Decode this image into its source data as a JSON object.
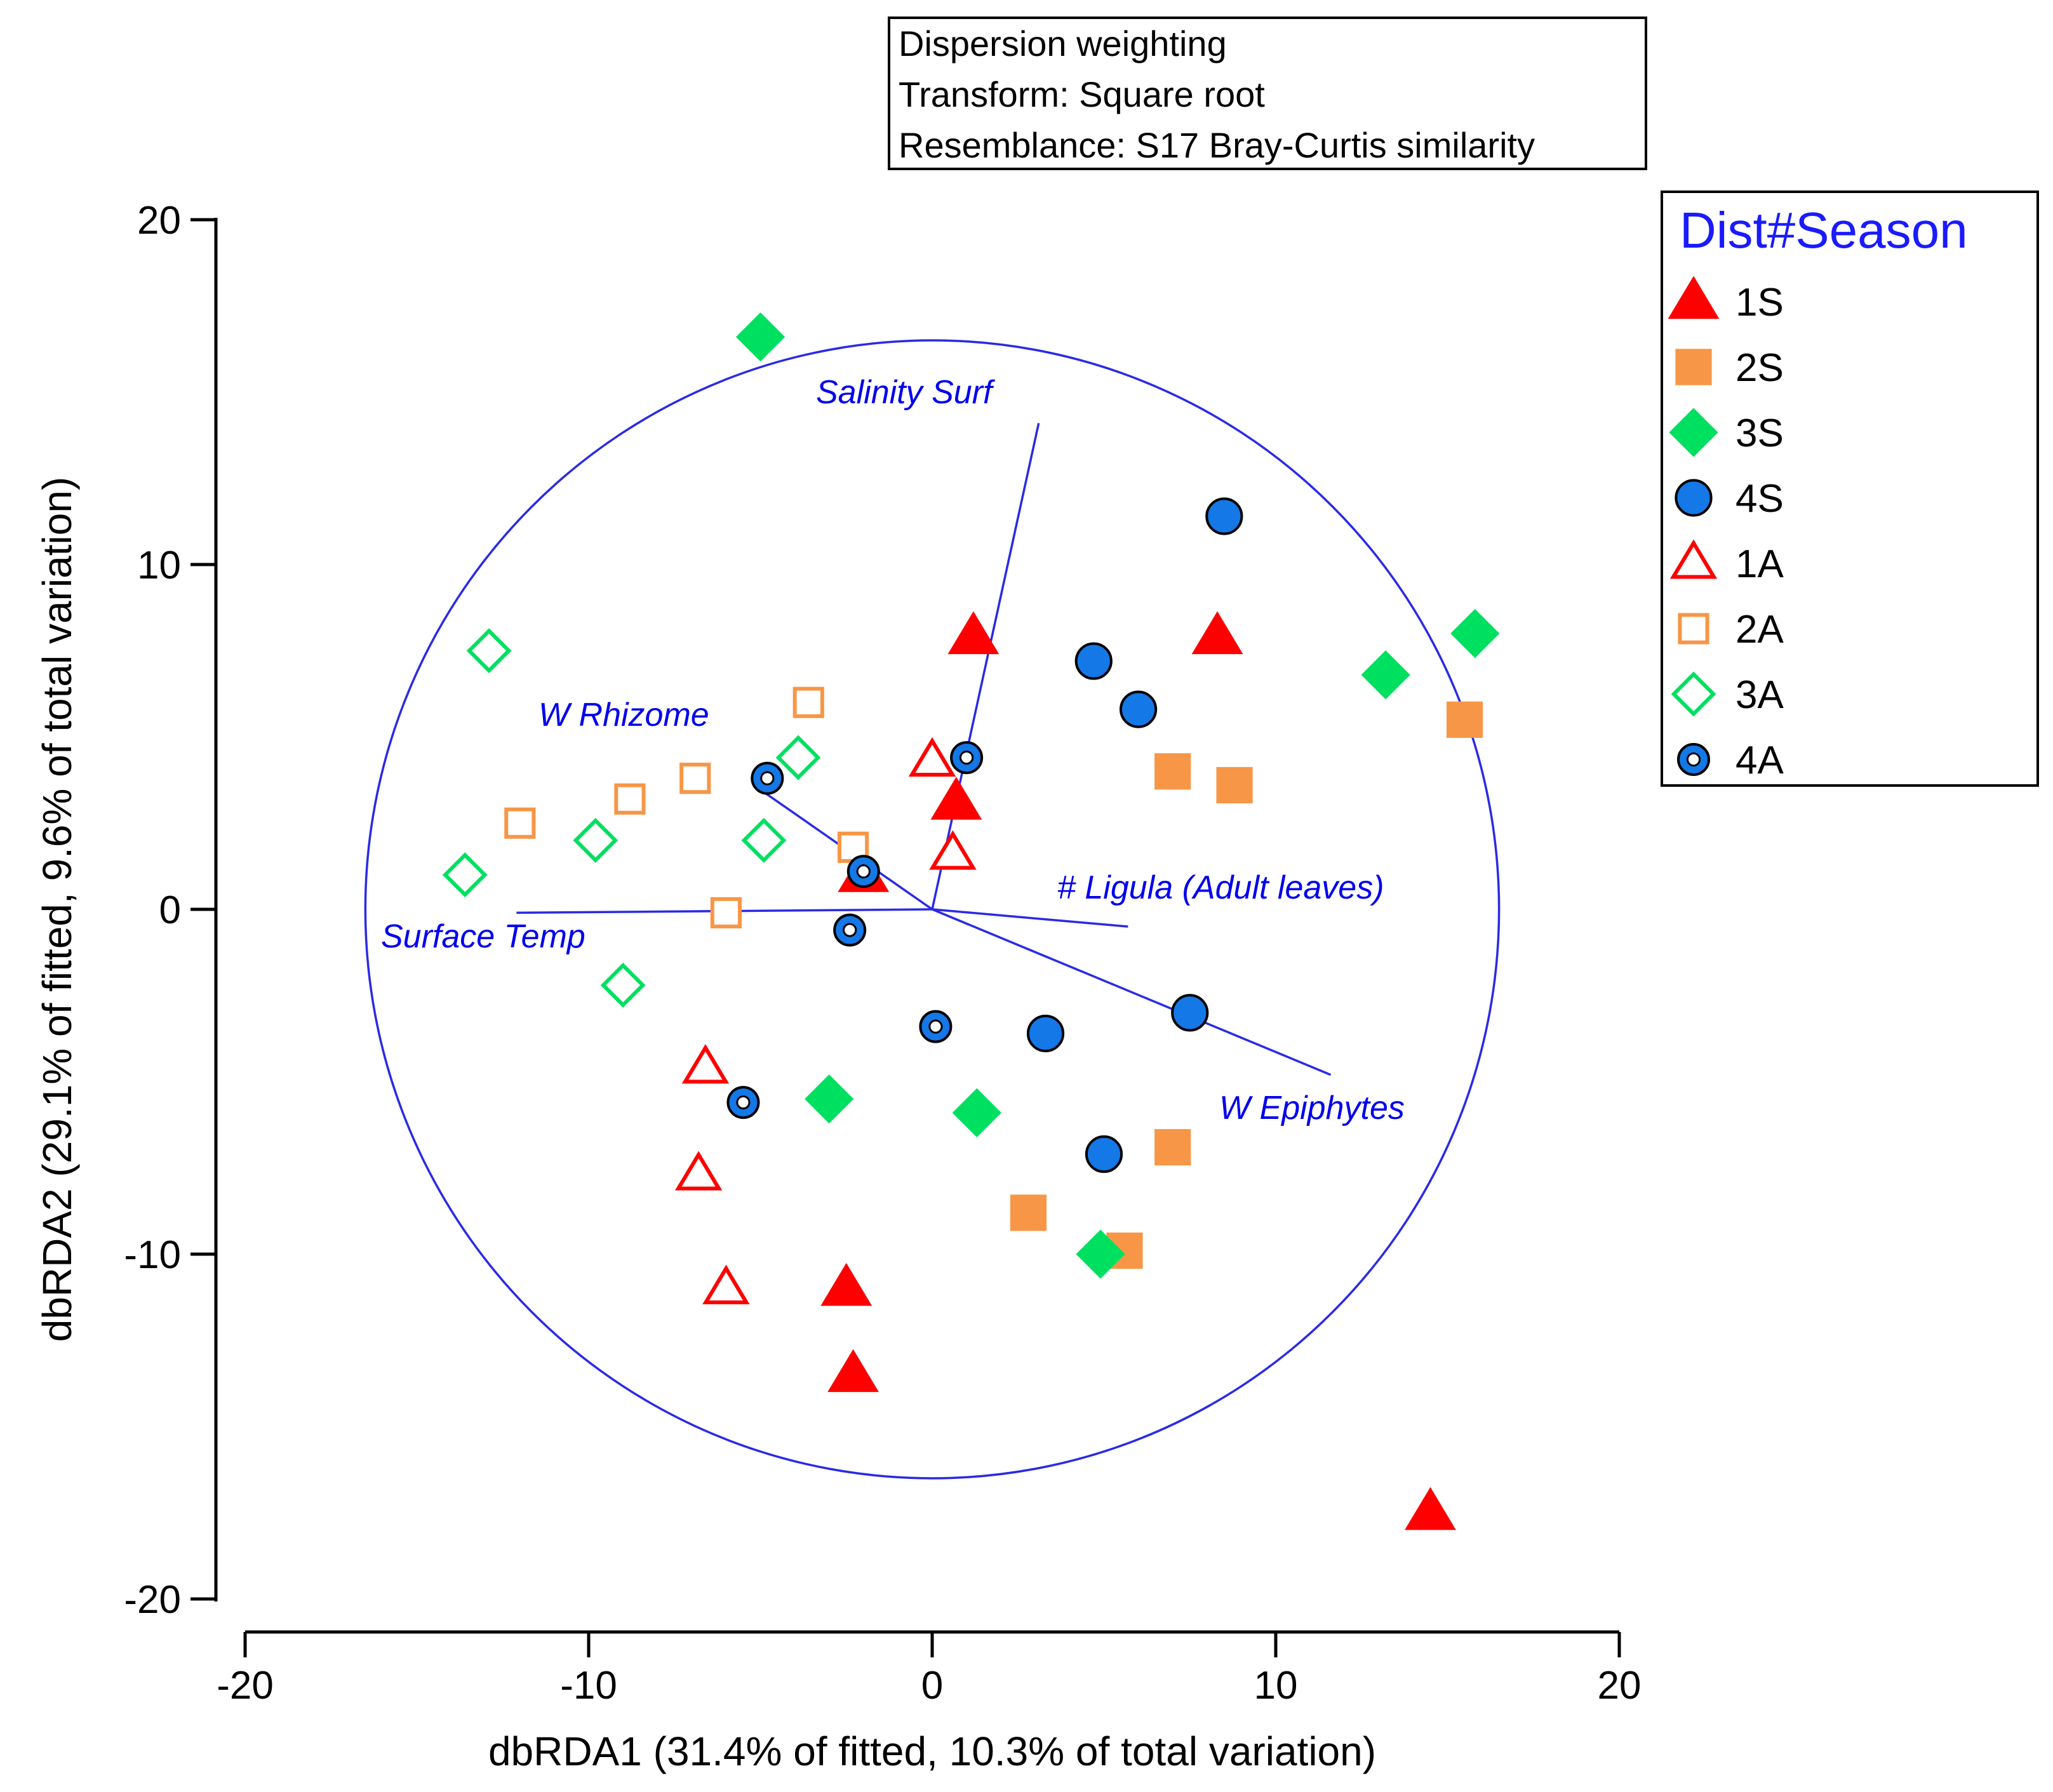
{
  "chart_data": {
    "type": "scatter",
    "title": "",
    "xlabel": "dbRDA1 (31.4% of fitted, 10.3% of total variation)",
    "ylabel": "dbRDA2 (29.1% of fitted, 9.6% of total variation)",
    "xlim": [
      -20,
      20
    ],
    "ylim": [
      -20,
      20
    ],
    "xticks": [
      -20,
      -10,
      0,
      10,
      20
    ],
    "yticks": [
      20,
      10,
      0,
      -10,
      -20
    ],
    "grid": false,
    "legend_position": "right",
    "info_box": [
      "Dispersion weighting",
      "Transform: Square root",
      "Resemblance: S17 Bray-Curtis similarity"
    ],
    "correlation_circle": {
      "cx": 0,
      "cy": 0,
      "r": 16.5
    },
    "legend_title": "Dist#Season",
    "series": [
      {
        "name": "1S",
        "shape": "triangle",
        "filled": true,
        "color": "#ff0000",
        "points": [
          [
            1.2,
            7.9
          ],
          [
            8.3,
            7.9
          ],
          [
            0.7,
            3.1
          ],
          [
            -2.0,
            1.0
          ],
          [
            -2.5,
            -11.0
          ],
          [
            -2.3,
            -13.5
          ],
          [
            14.5,
            -17.5
          ]
        ]
      },
      {
        "name": "2S",
        "shape": "square",
        "filled": true,
        "color": "#f79646",
        "points": [
          [
            15.5,
            5.5
          ],
          [
            7.0,
            4.0
          ],
          [
            8.8,
            3.6
          ],
          [
            7.0,
            -6.9
          ],
          [
            2.8,
            -8.8
          ],
          [
            5.6,
            -9.9
          ]
        ]
      },
      {
        "name": "3S",
        "shape": "diamond",
        "filled": true,
        "color": "#00e060",
        "points": [
          [
            -5.0,
            16.6
          ],
          [
            15.8,
            8.0
          ],
          [
            13.2,
            6.8
          ],
          [
            -3.0,
            -5.5
          ],
          [
            1.3,
            -5.9
          ],
          [
            4.9,
            -10.0
          ]
        ]
      },
      {
        "name": "4S",
        "shape": "circle",
        "filled": true,
        "color": "#1478e6",
        "points": [
          [
            8.5,
            11.4
          ],
          [
            4.7,
            7.2
          ],
          [
            6.0,
            5.8
          ],
          [
            7.5,
            -3.0
          ],
          [
            3.3,
            -3.6
          ],
          [
            5.0,
            -7.1
          ]
        ]
      },
      {
        "name": "1A",
        "shape": "triangle",
        "filled": false,
        "color": "#ff0000",
        "points": [
          [
            0.0,
            4.3
          ],
          [
            0.6,
            1.6
          ],
          [
            -6.6,
            -4.6
          ],
          [
            -6.8,
            -7.7
          ],
          [
            -6.0,
            -11.0
          ]
        ]
      },
      {
        "name": "2A",
        "shape": "square",
        "filled": false,
        "color": "#f79646",
        "points": [
          [
            -3.6,
            6.0
          ],
          [
            -6.9,
            3.8
          ],
          [
            -8.8,
            3.2
          ],
          [
            -12.0,
            2.5
          ],
          [
            -2.3,
            1.8
          ],
          [
            -6.0,
            -0.1
          ]
        ]
      },
      {
        "name": "3A",
        "shape": "diamond",
        "filled": false,
        "color": "#00e060",
        "points": [
          [
            -12.9,
            7.5
          ],
          [
            -3.9,
            4.4
          ],
          [
            -4.9,
            2.0
          ],
          [
            -9.8,
            2.0
          ],
          [
            -13.6,
            1.0
          ],
          [
            -9.0,
            -2.2
          ]
        ]
      },
      {
        "name": "4A",
        "shape": "circle-dot",
        "filled": false,
        "color": "#1478e6",
        "points": [
          [
            1.0,
            4.4
          ],
          [
            -4.8,
            3.8
          ],
          [
            -2.0,
            1.1
          ],
          [
            -2.4,
            -0.6
          ],
          [
            0.1,
            -3.4
          ],
          [
            -5.5,
            -5.6
          ]
        ]
      }
    ],
    "vectors": [
      {
        "name": "Salinity Surf",
        "x": 3.1,
        "y": 14.1
      },
      {
        "name": "W Rhizome",
        "x": -4.9,
        "y": 3.4
      },
      {
        "name": "# Ligula (Adult leaves)",
        "x": 5.7,
        "y": -0.5
      },
      {
        "name": "Surface Temp",
        "x": -12.1,
        "y": -0.1
      },
      {
        "name": "W Epiphytes",
        "x": 11.6,
        "y": -4.8
      }
    ]
  }
}
